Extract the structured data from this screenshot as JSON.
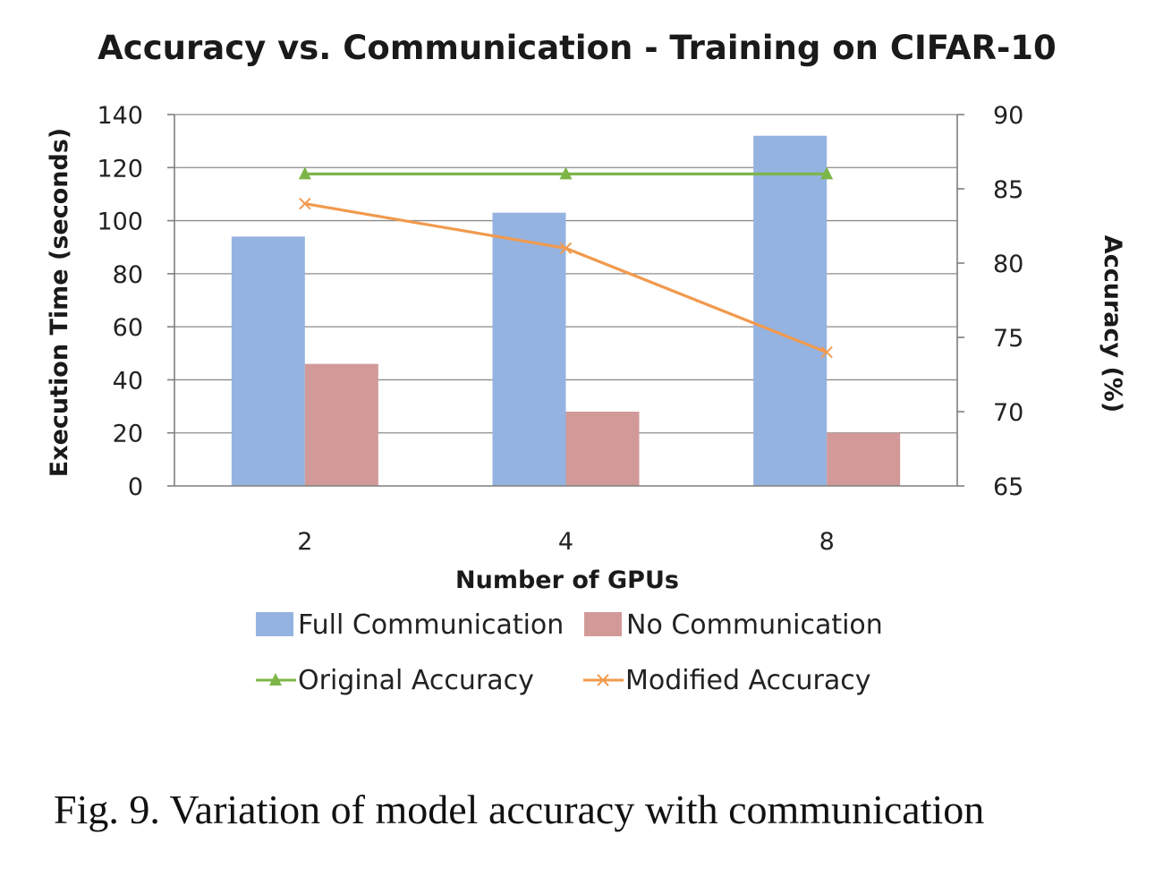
{
  "chart_data": {
    "type": "bar",
    "title": "Accuracy vs. Communication - Training on CIFAR-10",
    "xlabel": "Number of GPUs",
    "ylabel": "Execution Time (seconds)",
    "y2label": "Accuracy (%)",
    "categories": [
      "2",
      "4",
      "8"
    ],
    "ylim": [
      0,
      140
    ],
    "yticks": [
      0,
      20,
      40,
      60,
      80,
      100,
      120,
      140
    ],
    "y2lim": [
      65,
      90
    ],
    "y2ticks": [
      65,
      70,
      75,
      80,
      85,
      90
    ],
    "grid": true,
    "legend_position": "bottom",
    "series": [
      {
        "name": "Full Communication",
        "kind": "bar",
        "axis": "left",
        "color": "#95b3e1",
        "values": [
          94,
          103,
          132
        ]
      },
      {
        "name": "No Communication",
        "kind": "bar",
        "axis": "left",
        "color": "#d19a98",
        "values": [
          46,
          28,
          20
        ]
      },
      {
        "name": "Original Accuracy",
        "kind": "line",
        "axis": "right",
        "color": "#7db548",
        "marker": "triangle",
        "values": [
          86,
          86,
          86
        ]
      },
      {
        "name": "Modified Accuracy",
        "kind": "line",
        "axis": "right",
        "color": "#f19a4e",
        "marker": "x",
        "values": [
          84,
          81,
          74
        ]
      }
    ]
  },
  "caption": "Fig. 9.   Variation of model accuracy with communication"
}
